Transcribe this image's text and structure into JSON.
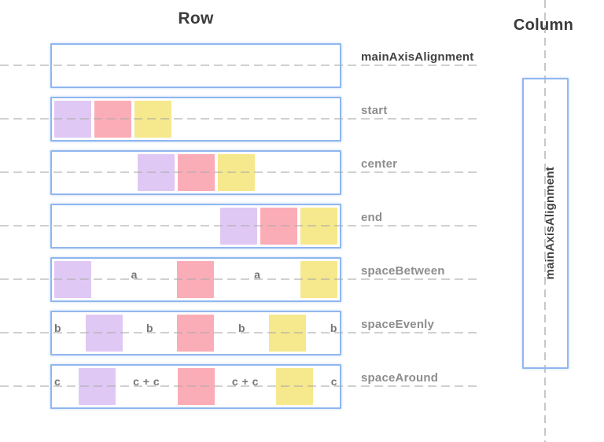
{
  "titles": {
    "row": "Row",
    "column": "Column"
  },
  "colors": {
    "purple": "#e0c8f4",
    "pink": "#fbadb7",
    "yellow": "#f6e88c",
    "box_border": "#90b7ef",
    "guide_line": "#aaaaaa",
    "label_gray": "#8d8d8d",
    "label_dark": "#424242",
    "title_dark": "#3b3b3b",
    "letter_gray": "#767676"
  },
  "row_section": {
    "rows": [
      {
        "label": "mainAxisAlignment",
        "emphasis": true,
        "justify": "start",
        "items": []
      },
      {
        "label": "start",
        "emphasis": false,
        "justify": "start",
        "items": [
          {
            "type": "square",
            "color": "purple"
          },
          {
            "type": "square",
            "color": "pink"
          },
          {
            "type": "square",
            "color": "yellow"
          }
        ]
      },
      {
        "label": "center",
        "emphasis": false,
        "justify": "center",
        "items": [
          {
            "type": "square",
            "color": "purple"
          },
          {
            "type": "square",
            "color": "pink"
          },
          {
            "type": "square",
            "color": "yellow"
          }
        ]
      },
      {
        "label": "end",
        "emphasis": false,
        "justify": "end",
        "items": [
          {
            "type": "square",
            "color": "purple"
          },
          {
            "type": "square",
            "color": "pink"
          },
          {
            "type": "square",
            "color": "yellow"
          }
        ]
      },
      {
        "label": "spaceBetween",
        "emphasis": false,
        "justify": "space-between",
        "items": [
          {
            "type": "square",
            "color": "purple"
          },
          {
            "type": "letter",
            "text": "a"
          },
          {
            "type": "square",
            "color": "pink"
          },
          {
            "type": "letter",
            "text": "a"
          },
          {
            "type": "square",
            "color": "yellow"
          }
        ]
      },
      {
        "label": "spaceEvenly",
        "emphasis": false,
        "justify": "space-between",
        "items": [
          {
            "type": "letter",
            "text": "b"
          },
          {
            "type": "square",
            "color": "purple"
          },
          {
            "type": "letter",
            "text": "b"
          },
          {
            "type": "square",
            "color": "pink"
          },
          {
            "type": "letter",
            "text": "b"
          },
          {
            "type": "square",
            "color": "yellow"
          },
          {
            "type": "letter",
            "text": "b"
          }
        ]
      },
      {
        "label": "spaceAround",
        "emphasis": false,
        "justify": "space-between",
        "items": [
          {
            "type": "letter",
            "text": "c"
          },
          {
            "type": "square",
            "color": "purple"
          },
          {
            "type": "letter",
            "text": "c + c"
          },
          {
            "type": "square",
            "color": "pink"
          },
          {
            "type": "letter",
            "text": "c + c"
          },
          {
            "type": "square",
            "color": "yellow"
          },
          {
            "type": "letter",
            "text": "c"
          }
        ]
      }
    ]
  },
  "column_section": {
    "vertical_label": "mainAxisAlignment"
  }
}
